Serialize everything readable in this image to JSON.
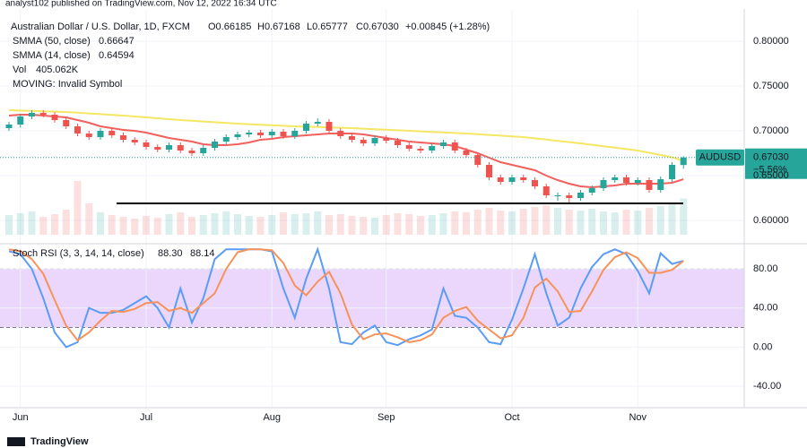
{
  "header": {
    "published": "analyst102 published on TradingView.com, Nov 12, 2022 16:34 UTC",
    "symbol": "Australian Dollar / U.S. Dollar, 1D, FXCM",
    "ohlc": [
      "O0.66185",
      "H0.67168",
      "L0.65777",
      "C0.67030",
      "+0.00845 (+1.28%)"
    ],
    "logo": "TradingView"
  },
  "chart_data": [
    {
      "type": "candlestick",
      "categories": [
        null,
        "Jun",
        null,
        null,
        null,
        null,
        null,
        null,
        null,
        null,
        null,
        null,
        "Jul",
        null,
        null,
        null,
        null,
        null,
        null,
        null,
        null,
        null,
        null,
        "Aug",
        null,
        null,
        null,
        null,
        null,
        null,
        null,
        null,
        null,
        "Sep",
        null,
        null,
        null,
        null,
        null,
        null,
        null,
        null,
        null,
        null,
        "Oct",
        null,
        null,
        null,
        null,
        null,
        null,
        null,
        null,
        null,
        null,
        "Nov",
        null,
        null,
        null,
        null
      ],
      "open": [
        0.703,
        0.707,
        0.716,
        0.72,
        0.718,
        0.712,
        0.705,
        0.697,
        0.693,
        0.7,
        0.695,
        0.69,
        0.687,
        0.682,
        0.679,
        0.684,
        0.678,
        0.675,
        0.681,
        0.688,
        0.693,
        0.696,
        0.698,
        0.695,
        0.699,
        0.694,
        0.7,
        0.708,
        0.71,
        0.7,
        0.694,
        0.69,
        0.686,
        0.692,
        0.689,
        0.684,
        0.68,
        0.678,
        0.683,
        0.687,
        0.678,
        0.673,
        0.662,
        0.648,
        0.643,
        0.648,
        0.645,
        0.638,
        0.628,
        0.628,
        0.625,
        0.631,
        0.636,
        0.645,
        0.648,
        0.642,
        0.645,
        0.634,
        0.646,
        0.66185
      ],
      "high": [
        0.71,
        0.719,
        0.723,
        0.723,
        0.721,
        0.715,
        0.708,
        0.7,
        0.703,
        0.703,
        0.698,
        0.693,
        0.69,
        0.685,
        0.687,
        0.687,
        0.681,
        0.684,
        0.691,
        0.696,
        0.699,
        0.701,
        0.701,
        0.702,
        0.702,
        0.703,
        0.711,
        0.714,
        0.713,
        0.703,
        0.697,
        0.693,
        0.695,
        0.695,
        0.692,
        0.687,
        0.683,
        0.686,
        0.69,
        0.69,
        0.681,
        0.676,
        0.665,
        0.651,
        0.651,
        0.651,
        0.648,
        0.641,
        0.631,
        0.631,
        0.634,
        0.639,
        0.648,
        0.651,
        0.651,
        0.648,
        0.648,
        0.649,
        0.665,
        0.67168
      ],
      "low": [
        0.7,
        0.704,
        0.713,
        0.715,
        0.709,
        0.702,
        0.694,
        0.69,
        0.69,
        0.692,
        0.687,
        0.684,
        0.679,
        0.676,
        0.676,
        0.675,
        0.672,
        0.672,
        0.678,
        0.685,
        0.69,
        0.693,
        0.692,
        0.692,
        0.691,
        0.691,
        0.697,
        0.705,
        0.697,
        0.691,
        0.687,
        0.683,
        0.683,
        0.686,
        0.681,
        0.677,
        0.675,
        0.675,
        0.68,
        0.675,
        0.67,
        0.659,
        0.645,
        0.64,
        0.64,
        0.642,
        0.635,
        0.625,
        0.622,
        0.62,
        0.622,
        0.628,
        0.633,
        0.642,
        0.639,
        0.639,
        0.631,
        0.631,
        0.643,
        0.65777
      ],
      "close": [
        0.707,
        0.716,
        0.72,
        0.718,
        0.712,
        0.705,
        0.697,
        0.693,
        0.7,
        0.695,
        0.69,
        0.687,
        0.682,
        0.679,
        0.684,
        0.678,
        0.675,
        0.681,
        0.688,
        0.693,
        0.696,
        0.698,
        0.695,
        0.699,
        0.694,
        0.7,
        0.708,
        0.71,
        0.7,
        0.694,
        0.69,
        0.686,
        0.692,
        0.689,
        0.684,
        0.68,
        0.678,
        0.683,
        0.687,
        0.678,
        0.673,
        0.662,
        0.648,
        0.643,
        0.648,
        0.645,
        0.638,
        0.628,
        0.628,
        0.625,
        0.631,
        0.636,
        0.645,
        0.648,
        0.642,
        0.645,
        0.634,
        0.646,
        0.662,
        0.6703
      ],
      "up_color": "#26a69a",
      "down_color": "#ef5350",
      "series": [
        {
          "name": "SMMA (50, close)",
          "color": "#f5e663",
          "label_color": "#c9b100",
          "values": [
            0.723,
            0.7226,
            0.7222,
            0.7218,
            0.7214,
            0.721,
            0.7202,
            0.7194,
            0.7186,
            0.7178,
            0.717,
            0.716,
            0.715,
            0.714,
            0.713,
            0.712,
            0.7112,
            0.7104,
            0.7096,
            0.7088,
            0.708,
            0.7074,
            0.7068,
            0.7062,
            0.7056,
            0.705,
            0.7046,
            0.7042,
            0.7038,
            0.7034,
            0.703,
            0.7024,
            0.7018,
            0.7012,
            0.7006,
            0.7,
            0.6994,
            0.6988,
            0.6982,
            0.6976,
            0.697,
            0.6962,
            0.6954,
            0.6946,
            0.6938,
            0.693,
            0.6916,
            0.6902,
            0.6888,
            0.6874,
            0.686,
            0.6844,
            0.6828,
            0.6812,
            0.6796,
            0.678,
            0.6755,
            0.673,
            0.6705,
            0.66647
          ]
        },
        {
          "name": "SMMA (14, close)",
          "color": "#f0605d",
          "label_color": "#f0605d",
          "values": [
            0.717,
            0.718,
            0.718,
            0.717,
            0.716,
            0.715,
            0.712,
            0.709,
            0.705,
            0.703,
            0.701,
            0.7,
            0.698,
            0.695,
            0.692,
            0.69,
            0.688,
            0.685,
            0.684,
            0.684,
            0.685,
            0.687,
            0.69,
            0.691,
            0.693,
            0.694,
            0.695,
            0.696,
            0.697,
            0.697,
            0.697,
            0.696,
            0.694,
            0.692,
            0.69,
            0.688,
            0.687,
            0.686,
            0.685,
            0.683,
            0.679,
            0.675,
            0.67,
            0.665,
            0.662,
            0.659,
            0.656,
            0.65,
            0.645,
            0.641,
            0.638,
            0.637,
            0.638,
            0.639,
            0.641,
            0.641,
            0.641,
            0.641,
            0.642,
            0.64594
          ]
        }
      ],
      "volume_name": "Vol",
      "volume_label": "405.062K",
      "volume": [
        220,
        240,
        260,
        200,
        230,
        280,
        600,
        350,
        250,
        220,
        200,
        180,
        210,
        190,
        230,
        250,
        200,
        220,
        240,
        260,
        230,
        210,
        200,
        220,
        250,
        230,
        240,
        260,
        220,
        230,
        210,
        200,
        190,
        220,
        240,
        230,
        210,
        220,
        240,
        260,
        250,
        280,
        300,
        270,
        260,
        290,
        310,
        330,
        300,
        280,
        270,
        290,
        260,
        250,
        280,
        270,
        300,
        320,
        350,
        405.062
      ],
      "moving_label": "MOVING: Invalid Symbol",
      "hline": 0.619,
      "symbol_label": "AUDUSD",
      "last_price_label": "0.67030",
      "change_label": "−5.56%",
      "ylim": [
        0.576,
        0.836
      ],
      "yticks": [
        {
          "value": 0.6,
          "label": "0.60000"
        },
        {
          "value": 0.65,
          "label": "0.65000"
        },
        {
          "value": 0.7,
          "label": "0.70000"
        },
        {
          "value": 0.75,
          "label": "0.75000"
        },
        {
          "value": 0.8,
          "label": "0.80000"
        }
      ],
      "grid": true
    },
    {
      "type": "line",
      "title": "Stoch RSI (3, 3, 14, 14, close)",
      "series": [
        {
          "name": "K",
          "legend_label": "88.30",
          "color": "#5b9cf6",
          "values": [
            98,
            95,
            80,
            50,
            15,
            0,
            5,
            40,
            35,
            35,
            38,
            45,
            52,
            40,
            20,
            60,
            25,
            50,
            90,
            100,
            100,
            100,
            100,
            98,
            60,
            30,
            70,
            100,
            60,
            5,
            3,
            15,
            22,
            5,
            2,
            8,
            12,
            18,
            60,
            32,
            30,
            20,
            5,
            3,
            28,
            60,
            95,
            55,
            22,
            30,
            60,
            82,
            95,
            100,
            95,
            78,
            55,
            96,
            85,
            88.3
          ]
        },
        {
          "name": "D",
          "legend_label": "88.14",
          "color": "#f7935a",
          "values": [
            100,
            98,
            90,
            75,
            48,
            22,
            7,
            15,
            27,
            37,
            36,
            39,
            45,
            46,
            37,
            40,
            35,
            45,
            55,
            80,
            97,
            100,
            100,
            99,
            86,
            63,
            53,
            67,
            77,
            55,
            23,
            8,
            13,
            14,
            10,
            5,
            7,
            13,
            30,
            37,
            41,
            27,
            18,
            9,
            12,
            30,
            61,
            70,
            57,
            36,
            37,
            57,
            79,
            92,
            97,
            91,
            76,
            76,
            79,
            88.14
          ]
        }
      ],
      "bands": [
        20,
        80
      ],
      "band_color": "#ead7fb",
      "ylim": [
        -62,
        103
      ],
      "yticks": [
        {
          "value": -40,
          "label": "-40.00"
        },
        {
          "value": 0,
          "label": "0.00"
        },
        {
          "value": 40,
          "label": "40.00"
        },
        {
          "value": 80,
          "label": "80.00"
        }
      ],
      "grid": true
    }
  ]
}
